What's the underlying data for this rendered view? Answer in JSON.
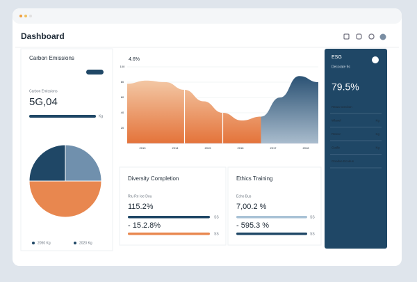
{
  "header": {
    "title": "Dashboard"
  },
  "carbon": {
    "title": "Carbon Emissions",
    "label": "Carbon Emissions",
    "value": "5G,04",
    "bar_label": "Kg",
    "pie": {
      "type": "pie",
      "values": [
        25,
        50,
        25
      ],
      "colors": [
        "#7090ad",
        "#e8874f",
        "#1f4766"
      ]
    },
    "legend": [
      "2050 Kg",
      "2020 Kg"
    ]
  },
  "trend": {
    "type": "area",
    "title": "4.6%",
    "xlim": [
      0,
      10
    ],
    "ylim": [
      0,
      100
    ],
    "yticks": [
      20,
      40,
      60,
      80,
      100
    ],
    "categories": [
      "2013",
      "2014",
      "2015",
      "2016",
      "2017",
      "2018"
    ],
    "series": [
      {
        "color": "#e8874f",
        "x": [
          0,
          1,
          2,
          3,
          4,
          5,
          6,
          7
        ],
        "values": [
          78,
          82,
          80,
          70,
          55,
          40,
          30,
          35
        ]
      },
      {
        "color": "#2b5274",
        "x": [
          7,
          8,
          9,
          10
        ],
        "values": [
          35,
          60,
          88,
          80
        ]
      }
    ]
  },
  "esg": {
    "title": "ESG",
    "subtitle": "Decorate 9c",
    "value": "79.5%",
    "rows": [
      {
        "label": "Rstua Ctecbon",
        "value": ""
      },
      {
        "label": "Wlavel",
        "value": "Kg"
      },
      {
        "label": "Rstvor",
        "value": "Kg"
      },
      {
        "label": "Godle",
        "value": "Kg"
      },
      {
        "label": "Gnodve Ecodus",
        "value": ""
      }
    ]
  },
  "diversity": {
    "title": "Diversity Completion",
    "label": "Rtu Re Ioe Dou",
    "value": "115.2%",
    "bar_label": "SS",
    "value2": "- 15.2.8%",
    "bar2_label": "SS"
  },
  "ethics": {
    "title": "Ethics Training",
    "label": "Echo Bus",
    "value": "7,00.2 %",
    "bar_label": "SS",
    "value2": "- 595.3 %",
    "bar2_label": "SS"
  }
}
